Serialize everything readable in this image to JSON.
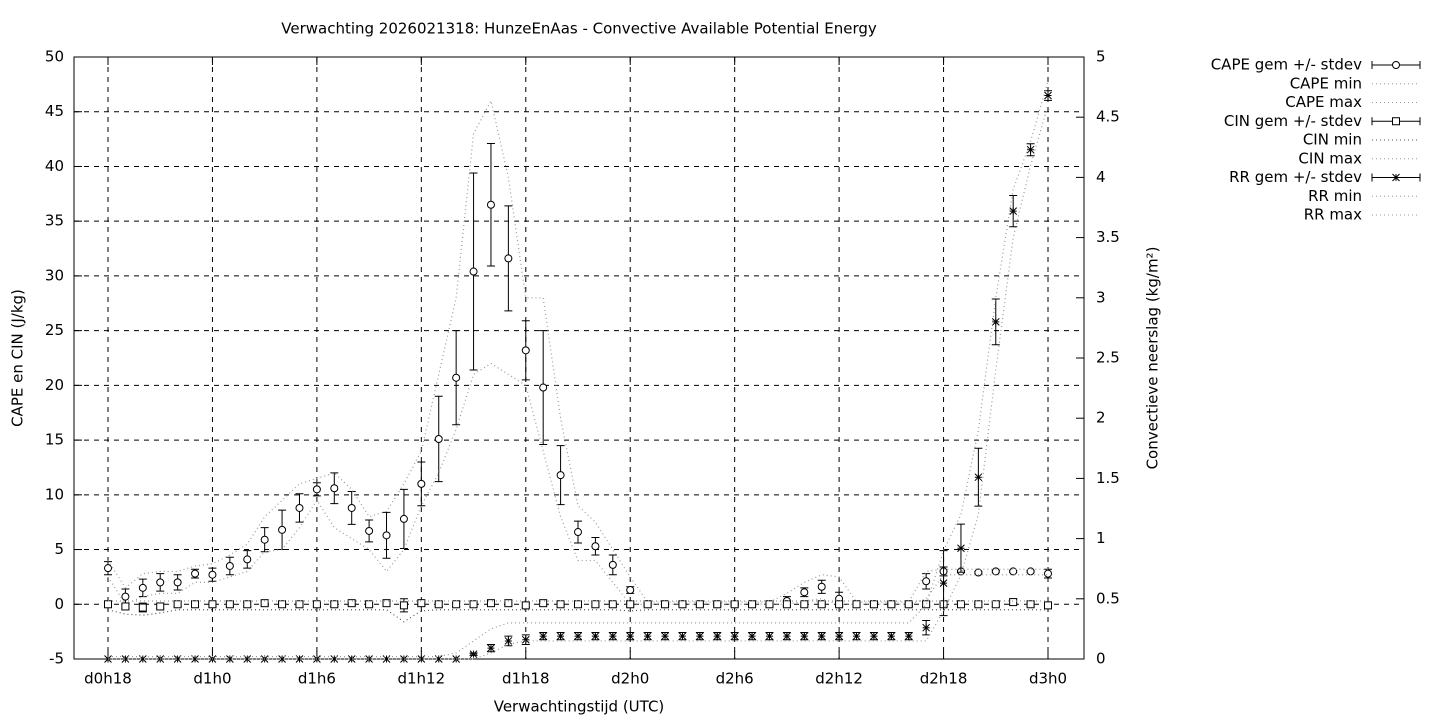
{
  "chart_data": {
    "type": "errorbar-line",
    "title": "Verwachting 2026021318: HunzeEnAas - Convective Available Potential Energy",
    "x_label": "Verwachtingstijd (UTC)",
    "y_label": "CAPE en CIN (J/kg)",
    "y2_label": "Convectieve neerslag (kg/m²)",
    "categories": [
      "d0h18",
      null,
      null,
      null,
      null,
      null,
      "d1h0",
      null,
      null,
      null,
      null,
      null,
      "d1h6",
      null,
      null,
      null,
      null,
      null,
      "d1h12",
      null,
      null,
      null,
      null,
      null,
      "d1h18",
      null,
      null,
      null,
      null,
      null,
      "d2h0",
      null,
      null,
      null,
      null,
      null,
      "d2h6",
      null,
      null,
      null,
      null,
      null,
      "d2h12",
      null,
      null,
      null,
      null,
      null,
      "d2h18",
      null,
      null,
      null,
      null,
      null,
      "d3h0"
    ],
    "ylim": [
      -5,
      50
    ],
    "yticks": [
      -5,
      0,
      5,
      10,
      15,
      20,
      25,
      30,
      35,
      40,
      45,
      50
    ],
    "y2lim": [
      0,
      5
    ],
    "y2ticks": [
      0,
      0.5,
      1,
      1.5,
      2,
      2.5,
      3,
      3.5,
      4,
      4.5,
      5
    ],
    "grid": true,
    "legend": "outside-right",
    "series": [
      {
        "name": "CAPE gem +/- stdev",
        "style": "errorbars",
        "marker": "circle",
        "color": "#000000",
        "values": [
          3.3,
          0.7,
          1.5,
          2.0,
          2.0,
          2.8,
          2.7,
          3.5,
          4.1,
          5.9,
          6.8,
          8.8,
          10.5,
          10.6,
          8.8,
          6.7,
          6.3,
          7.8,
          11.0,
          15.1,
          20.7,
          30.4,
          36.5,
          31.6,
          23.2,
          19.8,
          11.8,
          6.6,
          5.3,
          3.6,
          1.3,
          0,
          0,
          0,
          0,
          0,
          0,
          0,
          0,
          0.3,
          1.1,
          1.6,
          0.5,
          0,
          0,
          0,
          0,
          2.1,
          3.0,
          3.0,
          2.9,
          3.0,
          3.0,
          3.0,
          2.8
        ],
        "errors": [
          0.6,
          0.7,
          0.8,
          0.8,
          0.7,
          0.4,
          0.6,
          0.8,
          0.8,
          1.1,
          1.8,
          1.3,
          0.6,
          1.4,
          1.5,
          1.0,
          2.1,
          2.7,
          2.0,
          3.9,
          4.3,
          9.0,
          5.6,
          4.8,
          2.7,
          5.2,
          2.7,
          1.0,
          0.8,
          0.9,
          0.3,
          0.1,
          0.1,
          0.1,
          0.1,
          0.1,
          0.1,
          0.1,
          0.1,
          0.4,
          0.4,
          0.6,
          0.6,
          0.1,
          0.1,
          0.1,
          0.1,
          0.7,
          0.4,
          0.1,
          0.1,
          0.1,
          0.1,
          0.1,
          0.4
        ]
      },
      {
        "name": "CAPE min",
        "style": "dotted",
        "color": "#999999",
        "values": [
          2.5,
          0,
          0.7,
          1,
          1,
          2,
          2,
          2.5,
          3,
          4.8,
          5,
          7,
          9.5,
          7,
          6,
          5,
          3,
          5,
          9,
          12,
          16,
          21,
          22,
          21,
          20,
          14,
          8,
          4,
          4,
          2,
          0,
          0,
          0,
          0,
          0,
          0,
          0,
          0,
          0,
          0,
          0.3,
          0.5,
          0,
          0,
          0,
          0,
          0,
          0.5,
          2.7,
          2.7,
          2.7,
          2.7,
          2.7,
          2.7,
          2.7
        ]
      },
      {
        "name": "CAPE max",
        "style": "dotted",
        "color": "#999999",
        "values": [
          4,
          1.5,
          2.8,
          3,
          3,
          3.5,
          3.7,
          4.5,
          5.5,
          8,
          9.5,
          11,
          11.5,
          12,
          10.5,
          8,
          8.5,
          11,
          14,
          21,
          28,
          43,
          46,
          39,
          28,
          28,
          17,
          9,
          7.5,
          5,
          2.5,
          0.2,
          0.2,
          0.2,
          0.2,
          0.2,
          0.2,
          0.2,
          0.2,
          1,
          2,
          2.7,
          2.5,
          0.2,
          0.2,
          0.2,
          0.2,
          3,
          3.2,
          3.2,
          3.2,
          3.2,
          3.2,
          3.2,
          3.2
        ]
      },
      {
        "name": "CIN gem +/- stdev",
        "style": "errorbars",
        "marker": "square",
        "color": "#000000",
        "values": [
          0,
          -0.2,
          -0.3,
          -0.2,
          0,
          0,
          0,
          0,
          0,
          0.1,
          0,
          0,
          0,
          0,
          0.1,
          0,
          0.1,
          -0.1,
          0.1,
          0,
          0,
          0,
          0.1,
          0.1,
          -0.1,
          0.1,
          0,
          0,
          0,
          0,
          0,
          0,
          0,
          0,
          0,
          0,
          0,
          0,
          0,
          0,
          0,
          0,
          0,
          0,
          0,
          0,
          0,
          0,
          0,
          0,
          0,
          0,
          0.2,
          0,
          -0.1
        ],
        "errors": [
          0.2,
          0.2,
          0.4,
          0.2,
          0.2,
          0.2,
          0.2,
          0.2,
          0.2,
          0.2,
          0.2,
          0.2,
          0.2,
          0.2,
          0.2,
          0.2,
          0.2,
          0.6,
          0.2,
          0.2,
          0.2,
          0.2,
          0.2,
          0.2,
          0.2,
          0.2,
          0.2,
          0.2,
          0.2,
          0.2,
          0.2,
          0.2,
          0.2,
          0.2,
          0.2,
          0.2,
          0.2,
          0.2,
          0.2,
          0.2,
          0.2,
          0.2,
          0.2,
          0.2,
          0.2,
          0.2,
          0.2,
          0.2,
          0.2,
          0.2,
          0.2,
          0.2,
          0.2,
          0.2,
          0.2
        ]
      },
      {
        "name": "CIN min",
        "style": "dotted",
        "color": "#555555",
        "values": [
          -0.5,
          -0.9,
          -1,
          -0.8,
          -0.5,
          -0.5,
          -0.5,
          -0.5,
          -0.5,
          -0.5,
          -0.5,
          -0.5,
          -0.5,
          -0.5,
          -0.5,
          -0.5,
          -0.5,
          -1.6,
          -0.6,
          -0.5,
          -0.5,
          -0.5,
          -0.5,
          -0.5,
          -0.5,
          -0.5,
          -0.5,
          -0.5,
          -0.5,
          -0.5,
          -0.6,
          -0.5,
          -0.5,
          -0.5,
          -0.5,
          -0.5,
          -0.5,
          -0.5,
          -0.5,
          -0.5,
          -0.5,
          -0.5,
          -0.5,
          -0.5,
          -0.5,
          -0.5,
          -0.5,
          -0.5,
          -0.5,
          -0.5,
          -0.5,
          -0.5,
          -0.5,
          -0.5,
          -0.5
        ]
      },
      {
        "name": "CIN max",
        "style": "dotted",
        "color": "#999999",
        "values": [
          0.3,
          0.3,
          0.3,
          0.3,
          0.3,
          0.3,
          0.3,
          0.3,
          0.3,
          0.3,
          0.3,
          0.3,
          0.3,
          0.3,
          0.3,
          0.3,
          0.3,
          0.3,
          0.3,
          0.3,
          0.3,
          0.3,
          0.3,
          0.3,
          0.3,
          0.3,
          0.3,
          0.3,
          0.3,
          0.3,
          0.3,
          0.3,
          0.3,
          0.3,
          0.3,
          0.3,
          0.3,
          0.3,
          0.3,
          0.3,
          0.3,
          0.3,
          0.3,
          0.3,
          0.3,
          0.3,
          0.3,
          0.3,
          0.3,
          0.3,
          0.3,
          0.3,
          0.3,
          0.3,
          0.3
        ]
      },
      {
        "name": "RR gem +/- stdev",
        "style": "errorbars",
        "marker": "star",
        "color": "#000000",
        "axis": "y2",
        "values": [
          0,
          0,
          0,
          0,
          0,
          0,
          0,
          0,
          0,
          0,
          0,
          0,
          0,
          0,
          0,
          0,
          0,
          0,
          0,
          0,
          0,
          0.04,
          0.09,
          0.15,
          0.16,
          0.19,
          0.19,
          0.19,
          0.19,
          0.19,
          0.19,
          0.19,
          0.19,
          0.19,
          0.19,
          0.19,
          0.19,
          0.19,
          0.19,
          0.19,
          0.19,
          0.19,
          0.19,
          0.19,
          0.19,
          0.19,
          0.19,
          0.26,
          0.63,
          0.92,
          1.51,
          2.8,
          3.72,
          4.23,
          4.68
        ],
        "errors": [
          0,
          0,
          0,
          0,
          0,
          0,
          0,
          0,
          0,
          0,
          0,
          0,
          0,
          0,
          0,
          0,
          0,
          0,
          0,
          0,
          0,
          0.01,
          0.03,
          0.04,
          0.04,
          0.03,
          0.03,
          0.03,
          0.03,
          0.03,
          0.03,
          0.03,
          0.03,
          0.03,
          0.03,
          0.03,
          0.03,
          0.03,
          0.03,
          0.03,
          0.03,
          0.03,
          0.03,
          0.03,
          0.03,
          0.03,
          0.03,
          0.06,
          0.27,
          0.2,
          0.24,
          0.19,
          0.13,
          0.05,
          0.04
        ]
      },
      {
        "name": "RR min",
        "style": "dotted",
        "color": "#999999",
        "axis": "y2",
        "values": [
          0,
          0,
          0,
          0,
          0,
          0,
          0,
          0,
          0,
          0,
          0,
          0,
          0,
          0,
          0,
          0,
          0,
          0,
          0,
          0,
          0,
          0,
          0.05,
          0.12,
          0.15,
          0.15,
          0.15,
          0.15,
          0.15,
          0.15,
          0.15,
          0.15,
          0.15,
          0.15,
          0.15,
          0.15,
          0.15,
          0.15,
          0.15,
          0.15,
          0.15,
          0.15,
          0.15,
          0.15,
          0.15,
          0.15,
          0.15,
          0.15,
          0.4,
          0.7,
          1.2,
          2.4,
          3.5,
          4.1,
          4.6
        ]
      },
      {
        "name": "RR max",
        "style": "dotted",
        "color": "#999999",
        "axis": "y2",
        "values": [
          0.02,
          0.02,
          0.02,
          0.02,
          0.02,
          0.02,
          0.02,
          0.02,
          0.02,
          0.02,
          0.02,
          0.02,
          0.02,
          0.02,
          0.02,
          0.02,
          0.02,
          0.02,
          0.02,
          0.02,
          0.05,
          0.15,
          0.25,
          0.3,
          0.3,
          0.3,
          0.3,
          0.3,
          0.3,
          0.3,
          0.3,
          0.3,
          0.3,
          0.3,
          0.3,
          0.3,
          0.3,
          0.3,
          0.3,
          0.3,
          0.3,
          0.3,
          0.3,
          0.3,
          0.3,
          0.3,
          0.3,
          0.45,
          0.9,
          1.2,
          1.9,
          3.0,
          3.9,
          4.3,
          4.8
        ]
      }
    ]
  }
}
